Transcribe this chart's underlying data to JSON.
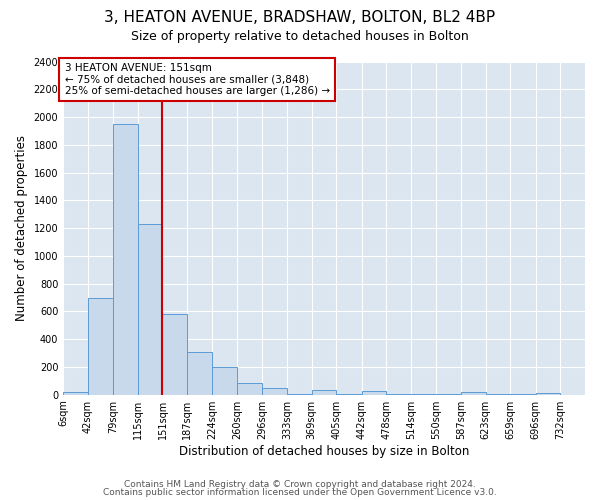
{
  "title": "3, HEATON AVENUE, BRADSHAW, BOLTON, BL2 4BP",
  "subtitle": "Size of property relative to detached houses in Bolton",
  "xlabel": "Distribution of detached houses by size in Bolton",
  "ylabel": "Number of detached properties",
  "bin_labels": [
    "6sqm",
    "42sqm",
    "79sqm",
    "115sqm",
    "151sqm",
    "187sqm",
    "224sqm",
    "260sqm",
    "296sqm",
    "333sqm",
    "369sqm",
    "405sqm",
    "442sqm",
    "478sqm",
    "514sqm",
    "550sqm",
    "587sqm",
    "623sqm",
    "659sqm",
    "696sqm",
    "732sqm"
  ],
  "bin_edges": [
    6,
    42,
    79,
    115,
    151,
    187,
    224,
    260,
    296,
    333,
    369,
    405,
    442,
    478,
    514,
    550,
    587,
    623,
    659,
    696,
    732,
    768
  ],
  "bar_heights": [
    20,
    700,
    1950,
    1230,
    580,
    305,
    200,
    85,
    45,
    5,
    35,
    5,
    30,
    5,
    5,
    5,
    20,
    5,
    5,
    15,
    0
  ],
  "bar_color": "#c8d9ec",
  "bar_edge_color": "#5b9bd5",
  "red_line_x": 151,
  "annotation_text": "3 HEATON AVENUE: 151sqm\n← 75% of detached houses are smaller (3,848)\n25% of semi-detached houses are larger (1,286) →",
  "annotation_box_color": "#ffffff",
  "annotation_box_edge_color": "#cc0000",
  "ylim": [
    0,
    2400
  ],
  "yticks": [
    0,
    200,
    400,
    600,
    800,
    1000,
    1200,
    1400,
    1600,
    1800,
    2000,
    2200,
    2400
  ],
  "footer_line1": "Contains HM Land Registry data © Crown copyright and database right 2024.",
  "footer_line2": "Contains public sector information licensed under the Open Government Licence v3.0.",
  "plot_bg_color": "#dce6f0",
  "fig_bg_color": "#ffffff",
  "grid_color": "#ffffff",
  "title_fontsize": 11,
  "subtitle_fontsize": 9,
  "axis_label_fontsize": 8.5,
  "tick_fontsize": 7,
  "annotation_fontsize": 7.5,
  "footer_fontsize": 6.5
}
